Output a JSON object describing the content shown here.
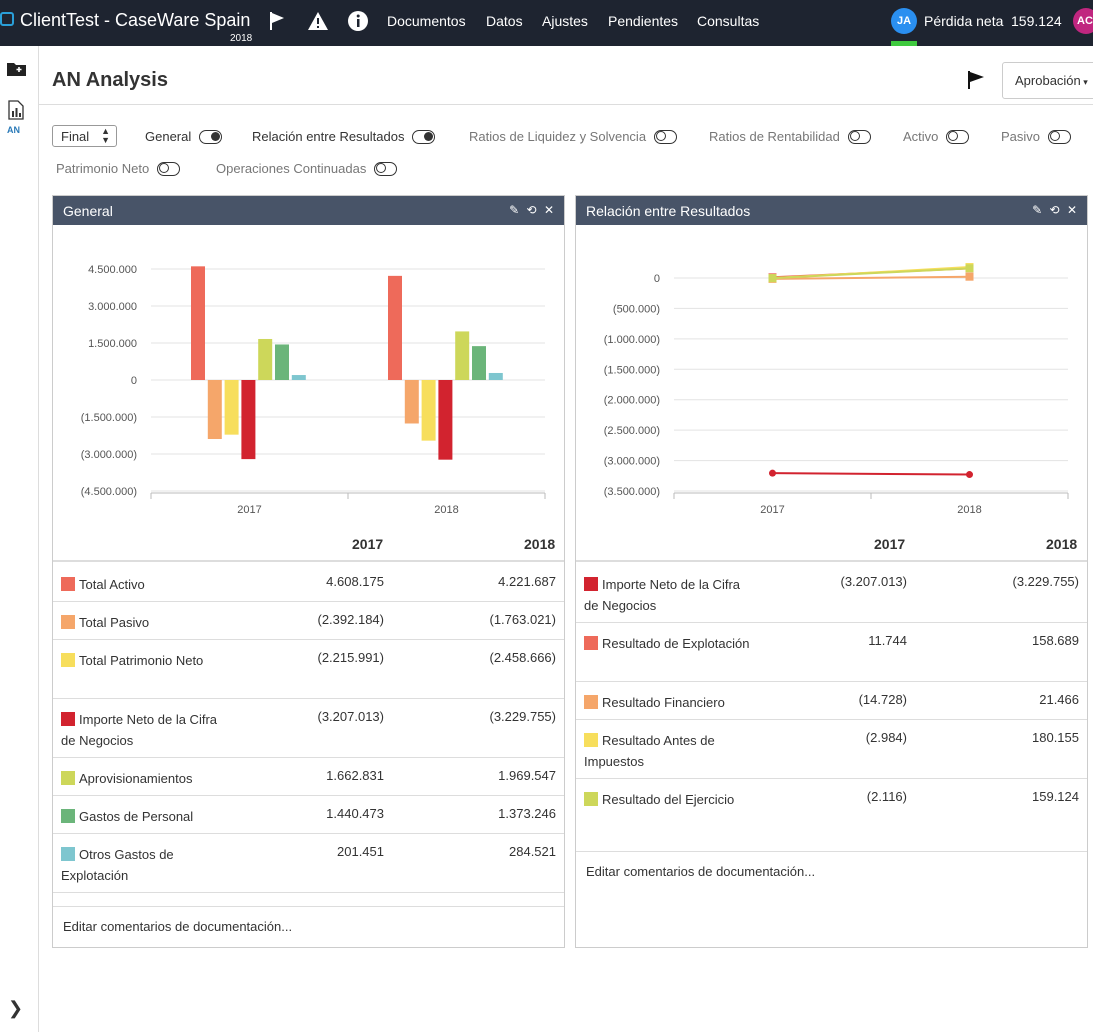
{
  "topbar": {
    "app_title": "ClientTest - CaseWare Spain",
    "year": "2018",
    "nav": [
      "Documentos",
      "Datos",
      "Ajustes",
      "Pendientes",
      "Consultas"
    ],
    "user_initials": "JA",
    "metric_label": "Pérdida neta",
    "metric_value": "159.124",
    "user2_initials": "AC"
  },
  "leftrail": {
    "an_label": "AN"
  },
  "page": {
    "title": "AN Analysis",
    "approval_label": "Aprobación"
  },
  "filters": {
    "select_value": "Final",
    "toggles": [
      {
        "label": "General",
        "on": true
      },
      {
        "label": "Relación entre Resultados",
        "on": true
      },
      {
        "label": "Ratios de Liquidez y Solvencia",
        "on": false
      },
      {
        "label": "Ratios de Rentabilidad",
        "on": false
      },
      {
        "label": "Activo",
        "on": false
      },
      {
        "label": "Pasivo",
        "on": false
      },
      {
        "label": "Patrimonio Neto",
        "on": false
      },
      {
        "label": "Operaciones Continuadas",
        "on": false
      }
    ]
  },
  "panels": [
    {
      "title": "General",
      "col_headers": [
        "2017",
        "2018"
      ],
      "rows": [
        {
          "label": "Total Activo",
          "color": "#ee6a5a",
          "v2017": "4.608.175",
          "v2018": "4.221.687"
        },
        {
          "label": "Total Pasivo",
          "color": "#f5a66a",
          "v2017": "(2.392.184)",
          "v2018": "(1.763.021)"
        },
        {
          "label": "Total Patrimonio Neto",
          "color": "#f7de5c",
          "v2017": "(2.215.991)",
          "v2018": "(2.458.666)"
        },
        {
          "label": "Importe Neto de la Cifra de Negocios",
          "color": "#d2232f",
          "v2017": "(3.207.013)",
          "v2018": "(3.229.755)"
        },
        {
          "label": "Aprovisionamientos",
          "color": "#cdd75a",
          "v2017": "1.662.831",
          "v2018": "1.969.547"
        },
        {
          "label": "Gastos de Personal",
          "color": "#6bb57a",
          "v2017": "1.440.473",
          "v2018": "1.373.246"
        },
        {
          "label": "Otros Gastos de Explotación",
          "color": "#7ec6cf",
          "v2017": "201.451",
          "v2018": "284.521"
        }
      ],
      "comment": "Editar comentarios de documentación..."
    },
    {
      "title": "Relación entre Resultados",
      "col_headers": [
        "2017",
        "2018"
      ],
      "rows": [
        {
          "label": "Importe Neto de la Cifra de Negocios",
          "color": "#d2232f",
          "v2017": "(3.207.013)",
          "v2018": "(3.229.755)"
        },
        {
          "label": "Resultado de Explotación",
          "color": "#ee6a5a",
          "v2017": "11.744",
          "v2018": "158.689"
        },
        {
          "label": "Resultado Financiero",
          "color": "#f5a66a",
          "v2017": "(14.728)",
          "v2018": "21.466"
        },
        {
          "label": "Resultado Antes de Impuestos",
          "color": "#f7de5c",
          "v2017": "(2.984)",
          "v2018": "180.155"
        },
        {
          "label": "Resultado del Ejercicio",
          "color": "#cdd75a",
          "v2017": "(2.116)",
          "v2018": "159.124"
        }
      ],
      "comment": "Editar comentarios de documentación..."
    }
  ],
  "chart_data": [
    {
      "type": "bar",
      "categories": [
        "2017",
        "2018"
      ],
      "ylim": [
        -4500000,
        4500000
      ],
      "yticks": [
        "4.500.000",
        "3.000.000",
        "1.500.000",
        "0",
        "(1.500.000)",
        "(3.000.000)",
        "(4.500.000)"
      ],
      "series": [
        {
          "name": "Total Activo",
          "color": "#ee6a5a",
          "values": [
            4608175,
            4221687
          ]
        },
        {
          "name": "Total Pasivo",
          "color": "#f5a66a",
          "values": [
            -2392184,
            -1763021
          ]
        },
        {
          "name": "Total Patrimonio Neto",
          "color": "#f7de5c",
          "values": [
            -2215991,
            -2458666
          ]
        },
        {
          "name": "Importe Neto de la Cifra de Negocios",
          "color": "#d2232f",
          "values": [
            -3207013,
            -3229755
          ]
        },
        {
          "name": "Aprovisionamientos",
          "color": "#cdd75a",
          "values": [
            1662831,
            1969547
          ]
        },
        {
          "name": "Gastos de Personal",
          "color": "#6bb57a",
          "values": [
            1440473,
            1373246
          ]
        },
        {
          "name": "Otros Gastos de Explotación",
          "color": "#7ec6cf",
          "values": [
            201451,
            284521
          ]
        }
      ]
    },
    {
      "type": "line",
      "categories": [
        "2017",
        "2018"
      ],
      "ylim": [
        -3500000,
        0
      ],
      "yticks": [
        "0",
        "(500.000)",
        "(1.000.000)",
        "(1.500.000)",
        "(2.000.000)",
        "(2.500.000)",
        "(3.000.000)",
        "(3.500.000)"
      ],
      "series": [
        {
          "name": "Importe Neto de la Cifra de Negocios",
          "color": "#d2232f",
          "values": [
            -3207013,
            -3229755
          ]
        },
        {
          "name": "Resultado de Explotación",
          "color": "#ee6a5a",
          "values": [
            11744,
            158689
          ]
        },
        {
          "name": "Resultado Financiero",
          "color": "#f5a66a",
          "values": [
            -14728,
            21466
          ]
        },
        {
          "name": "Resultado Antes de Impuestos",
          "color": "#f7de5c",
          "values": [
            -2984,
            180155
          ]
        },
        {
          "name": "Resultado del Ejercicio",
          "color": "#cdd75a",
          "values": [
            -2116,
            159124
          ]
        }
      ]
    }
  ]
}
